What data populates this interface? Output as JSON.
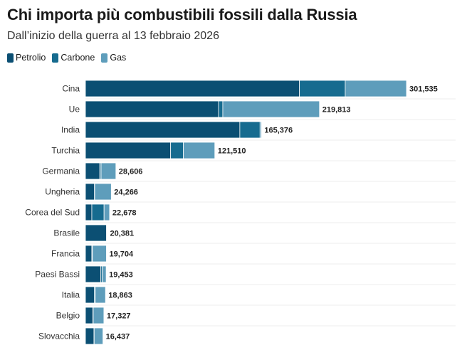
{
  "chart_data": {
    "type": "bar",
    "orientation": "horizontal",
    "stacked": true,
    "title": "Chi importa più combustibili fossili dalla Russia",
    "subtitle": "Dall’inizio della guerra al 13 febbraio 2026",
    "legend_position": "top-left",
    "grid": true,
    "xlim": [
      0,
      301535
    ],
    "categories": [
      "Cina",
      "Ue",
      "India",
      "Turchia",
      "Germania",
      "Ungheria",
      "Corea del Sud",
      "Brasile",
      "Francia",
      "Paesi Bassi",
      "Italia",
      "Belgio",
      "Slovacchia"
    ],
    "totals": [
      301535,
      219813,
      165376,
      121510,
      28606,
      24266,
      22678,
      20381,
      19704,
      19453,
      18863,
      17327,
      16437
    ],
    "totals_display": [
      "301,535",
      "219,813",
      "165,376",
      "121,510",
      "28,606",
      "24,266",
      "22,678",
      "20,381",
      "19,704",
      "19,453",
      "18,863",
      "17,327",
      "16,437"
    ],
    "series": [
      {
        "name": "Petrolio",
        "color": "#0b4f73",
        "values": [
          201000,
          125000,
          145000,
          80000,
          13500,
          8500,
          6000,
          19800,
          6000,
          14500,
          8300,
          7000,
          8000
        ]
      },
      {
        "name": "Carbone",
        "color": "#166b8f",
        "values": [
          43000,
          4000,
          19000,
          12000,
          1200,
          200,
          11500,
          300,
          500,
          1300,
          1100,
          300,
          200
        ]
      },
      {
        "name": "Gas",
        "color": "#5e9dbb",
        "values": [
          57535,
          90813,
          1376,
          29510,
          13906,
          15566,
          5178,
          281,
          13204,
          3653,
          9463,
          10027,
          8237
        ]
      }
    ]
  }
}
